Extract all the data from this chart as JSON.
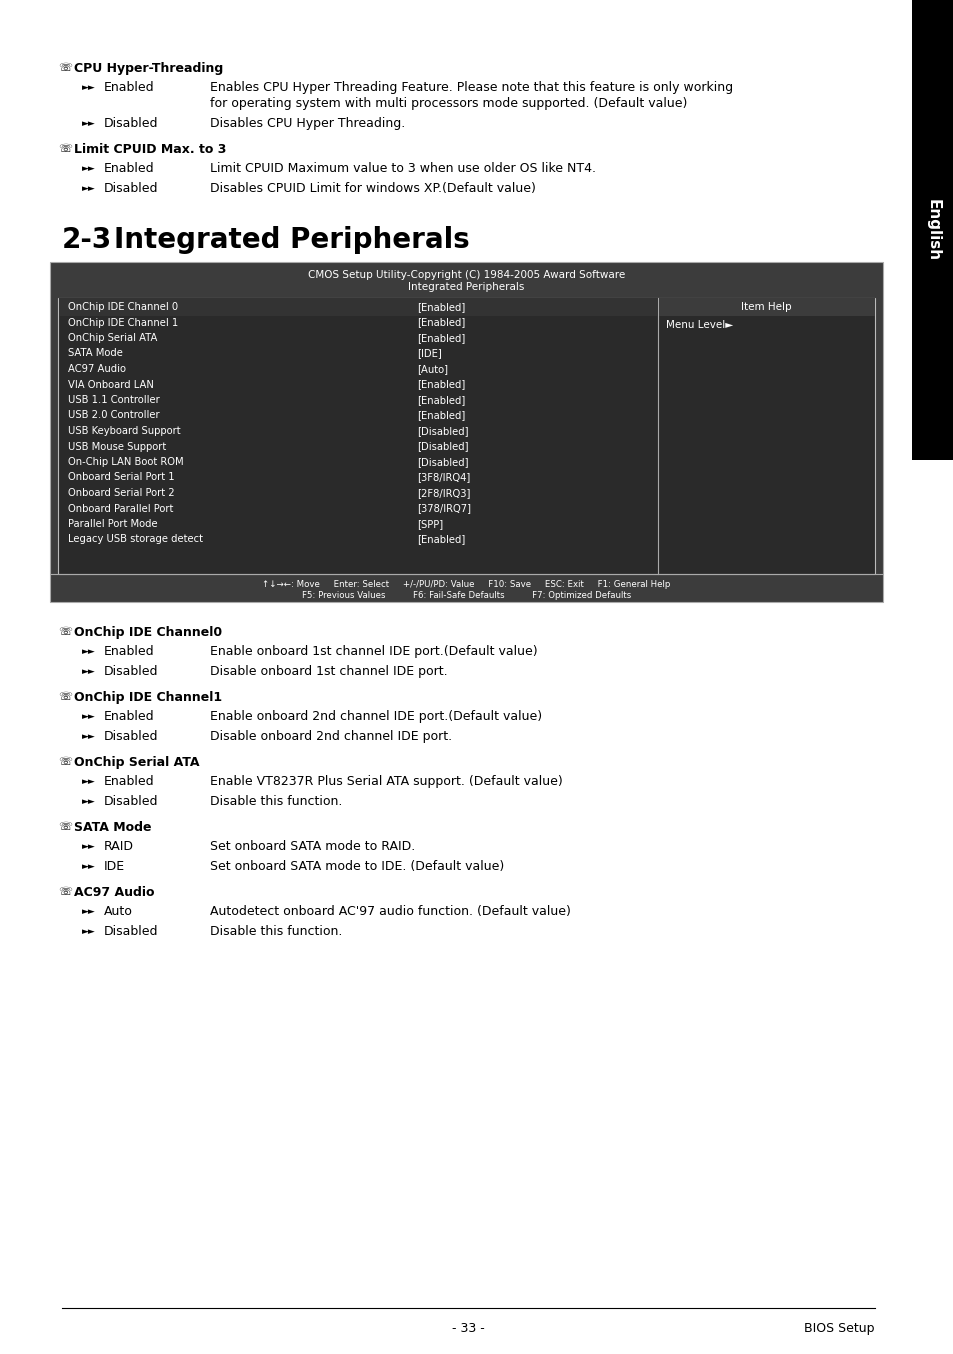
{
  "page_bg": "#ffffff",
  "sidebar_bg": "#000000",
  "sidebar_text": "English",
  "top_section": {
    "items": [
      {
        "heading": "CPU Hyper-Threading",
        "entries": [
          {
            "label": "Enabled",
            "desc": "Enables CPU Hyper Threading Feature. Please note that this feature is only working\nfor operating system with multi processors mode supported. (Default value)"
          },
          {
            "label": "Disabled",
            "desc": "Disables CPU Hyper Threading."
          }
        ]
      },
      {
        "heading": "Limit CPUID Max. to 3",
        "entries": [
          {
            "label": "Enabled",
            "desc": "Limit CPUID Maximum value to 3 when use older OS like NT4."
          },
          {
            "label": "Disabled",
            "desc": "Disables CPUID Limit for windows XP.(Default value)"
          }
        ]
      }
    ]
  },
  "section_heading_num": "2-3",
  "section_heading_text": "Integrated Peripherals",
  "bios_table": {
    "title_line1": "CMOS Setup Utility-Copyright (C) 1984-2005 Award Software",
    "title_line2": "Integrated Peripherals",
    "outer_bg": "#3c3c3c",
    "inner_bg": "#2a2a2a",
    "border_color": "#999999",
    "text_color": "#ffffff",
    "rows": [
      [
        "OnChip IDE Channel 0",
        "[Enabled]"
      ],
      [
        "OnChip IDE Channel 1",
        "[Enabled]"
      ],
      [
        "OnChip Serial ATA",
        "[Enabled]"
      ],
      [
        "SATA Mode",
        "[IDE]"
      ],
      [
        "AC97 Audio",
        "[Auto]"
      ],
      [
        "VIA Onboard LAN",
        "[Enabled]"
      ],
      [
        "USB 1.1 Controller",
        "[Enabled]"
      ],
      [
        "USB 2.0 Controller",
        "[Enabled]"
      ],
      [
        "USB Keyboard Support",
        "[Disabled]"
      ],
      [
        "USB Mouse Support",
        "[Disabled]"
      ],
      [
        "On-Chip LAN Boot ROM",
        "[Disabled]"
      ],
      [
        "Onboard Serial Port 1",
        "[3F8/IRQ4]"
      ],
      [
        "Onboard Serial Port 2",
        "[2F8/IRQ3]"
      ],
      [
        "Onboard Parallel Port",
        "[378/IRQ7]"
      ],
      [
        "Parallel Port Mode",
        "[SPP]"
      ],
      [
        "Legacy USB storage detect",
        "[Enabled]"
      ]
    ],
    "item_help_header": "Item Help",
    "item_help_content": "Menu Level►",
    "footer_line1": "↑↓→←: Move     Enter: Select     +/-/PU/PD: Value     F10: Save     ESC: Exit     F1: General Help",
    "footer_line2": "F5: Previous Values          F6: Fail-Safe Defaults          F7: Optimized Defaults"
  },
  "bottom_section": {
    "items": [
      {
        "heading": "OnChip IDE Channel0",
        "entries": [
          {
            "label": "Enabled",
            "desc": "Enable onboard 1st channel IDE port.(Default value)"
          },
          {
            "label": "Disabled",
            "desc": "Disable onboard 1st channel IDE port."
          }
        ]
      },
      {
        "heading": "OnChip IDE Channel1",
        "entries": [
          {
            "label": "Enabled",
            "desc": "Enable onboard 2nd channel IDE port.(Default value)"
          },
          {
            "label": "Disabled",
            "desc": "Disable onboard 2nd channel IDE port."
          }
        ]
      },
      {
        "heading": "OnChip Serial ATA",
        "entries": [
          {
            "label": "Enabled",
            "desc": "Enable VT8237R Plus Serial ATA support. (Default value)"
          },
          {
            "label": "Disabled",
            "desc": "Disable this function."
          }
        ]
      },
      {
        "heading": "SATA Mode",
        "entries": [
          {
            "label": "RAID",
            "desc": "Set onboard SATA mode to RAID."
          },
          {
            "label": "IDE",
            "desc": "Set onboard SATA mode to IDE. (Default value)"
          }
        ]
      },
      {
        "heading": "AC97 Audio",
        "entries": [
          {
            "label": "Auto",
            "desc": "Autodetect onboard AC'97 audio function. (Default value)"
          },
          {
            "label": "Disabled",
            "desc": "Disable this function."
          }
        ]
      }
    ]
  },
  "footer_page": "- 33 -",
  "footer_right": "BIOS Setup"
}
